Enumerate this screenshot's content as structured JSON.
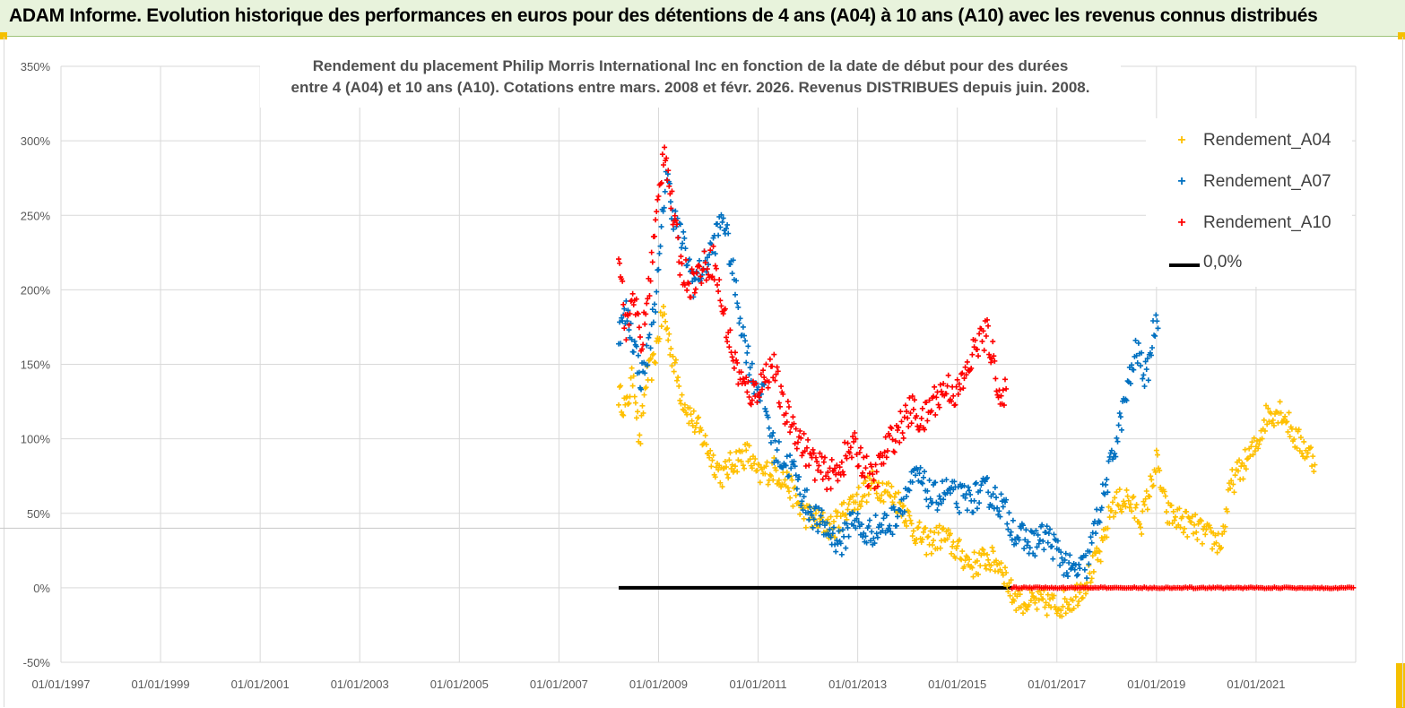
{
  "banner": {
    "title": "ADAM Informe. Evolution historique des performances en euros pour des détentions de 4 ans (A04) à 10 ans (A10) avec les revenus connus distribués"
  },
  "colors": {
    "a04": "#ffc000",
    "a07": "#0070c0",
    "a10": "#ff0000",
    "zero": "#000000",
    "grid": "#d9d9d9",
    "banner_bg": "#e8f3dc"
  },
  "chart_data": {
    "type": "scatter",
    "title_line1": "Rendement du placement Philip Morris International Inc en fonction de la date de début pour des durées",
    "title_line2": "entre 4 (A04) et 10 ans (A10).  Cotations entre mars. 2008 et févr. 2026. Revenus DISTRIBUES depuis juin. 2008.",
    "x_range": [
      1997.0,
      2023.0
    ],
    "ylim": [
      -50,
      350
    ],
    "x_tick_labels": [
      "01/01/1997",
      "01/01/1999",
      "01/01/2001",
      "01/01/2003",
      "01/01/2005",
      "01/01/2007",
      "01/01/2009",
      "01/01/2011",
      "01/01/2013",
      "01/01/2015",
      "01/01/2017",
      "01/01/2019",
      "01/01/2021"
    ],
    "x_tick_years": [
      1997,
      1999,
      2001,
      2003,
      2005,
      2007,
      2009,
      2011,
      2013,
      2015,
      2017,
      2019,
      2021
    ],
    "y_ticks": [
      -50,
      0,
      50,
      100,
      150,
      200,
      250,
      300,
      350
    ],
    "y_tick_labels": [
      "-50%",
      "0%",
      "50%",
      "100%",
      "150%",
      "200%",
      "250%",
      "300%",
      "350%"
    ],
    "legend": {
      "a04": "Rendement_A04",
      "a07": "Rendement_A07",
      "a10": "Rendement_A10",
      "zero": "0,0%"
    },
    "series": [
      {
        "name": "Rendement_A04",
        "key": "a04",
        "x": [
          2008.2,
          2008.35,
          2008.5,
          2008.62,
          2008.75,
          2008.9,
          2009.0,
          2009.1,
          2009.25,
          2009.45,
          2009.65,
          2009.9,
          2010.1,
          2010.3,
          2010.5,
          2010.8,
          2011.0,
          2011.3,
          2011.6,
          2011.9,
          2012.2,
          2012.5,
          2012.8,
          2013.0,
          2013.3,
          2013.6,
          2013.9,
          2014.1,
          2014.4,
          2014.7,
          2015.0,
          2015.3,
          2015.6,
          2015.9,
          2016.1,
          2016.4,
          2016.7,
          2017.0,
          2017.3,
          2017.6,
          2017.9,
          2018.1,
          2018.4,
          2018.7,
          2018.9,
          2019.0,
          2019.2,
          2019.5,
          2019.8,
          2020.0,
          2020.3,
          2020.5,
          2020.8,
          2021.0,
          2021.2,
          2021.5,
          2021.8,
          2022.2
        ],
        "y": [
          130,
          120,
          145,
          95,
          140,
          150,
          170,
          185,
          160,
          130,
          115,
          100,
          85,
          75,
          85,
          90,
          75,
          80,
          70,
          50,
          45,
          40,
          55,
          60,
          70,
          65,
          55,
          40,
          30,
          35,
          25,
          15,
          20,
          15,
          -5,
          -10,
          -10,
          -12,
          -8,
          5,
          25,
          55,
          60,
          45,
          70,
          85,
          50,
          45,
          40,
          35,
          30,
          70,
          85,
          95,
          115,
          120,
          100,
          85
        ],
        "jitter": 9
      },
      {
        "name": "Rendement_A07",
        "key": "a07",
        "x": [
          2008.2,
          2008.35,
          2008.5,
          2008.65,
          2008.8,
          2009.0,
          2009.15,
          2009.3,
          2009.5,
          2009.7,
          2009.9,
          2010.1,
          2010.3,
          2010.5,
          2010.7,
          2010.9,
          2011.1,
          2011.3,
          2011.5,
          2011.7,
          2011.9,
          2012.2,
          2012.5,
          2012.7,
          2012.9,
          2013.1,
          2013.4,
          2013.7,
          2014.0,
          2014.2,
          2014.5,
          2014.8,
          2015.0,
          2015.3,
          2015.6,
          2015.9,
          2016.2,
          2016.5,
          2016.8,
          2017.0,
          2017.3,
          2017.6,
          2017.8,
          2018.0,
          2018.2,
          2018.4,
          2018.6,
          2018.8,
          2018.95,
          2019.05
        ],
        "y": [
          170,
          185,
          165,
          140,
          160,
          210,
          280,
          250,
          230,
          205,
          215,
          230,
          250,
          210,
          170,
          140,
          130,
          95,
          85,
          80,
          60,
          45,
          35,
          30,
          50,
          35,
          40,
          45,
          65,
          75,
          60,
          65,
          60,
          60,
          65,
          55,
          35,
          30,
          35,
          25,
          10,
          15,
          45,
          70,
          100,
          130,
          160,
          140,
          175,
          185
        ],
        "jitter": 10
      },
      {
        "name": "Rendement_A10",
        "key": "a10",
        "x": [
          2008.2,
          2008.35,
          2008.5,
          2008.65,
          2008.8,
          2009.0,
          2009.12,
          2009.25,
          2009.45,
          2009.65,
          2009.9,
          2010.1,
          2010.3,
          2010.5,
          2010.7,
          2010.9,
          2011.1,
          2011.3,
          2011.5,
          2011.7,
          2011.9,
          2012.2,
          2012.5,
          2012.7,
          2012.9,
          2013.1,
          2013.3,
          2013.6,
          2013.9,
          2014.1,
          2014.3,
          2014.5,
          2014.8,
          2015.0,
          2015.2,
          2015.4,
          2015.6,
          2015.75,
          2015.9,
          2016.0
        ],
        "y": [
          230,
          170,
          200,
          160,
          200,
          260,
          300,
          260,
          215,
          205,
          215,
          220,
          185,
          155,
          135,
          130,
          140,
          150,
          120,
          110,
          95,
          80,
          75,
          85,
          95,
          85,
          70,
          95,
          110,
          120,
          110,
          125,
          135,
          130,
          145,
          165,
          170,
          150,
          120,
          135
        ],
        "jitter": 11
      },
      {
        "name": "Rendement_A10 (0%)",
        "key": "a10",
        "x": [
          2016.1,
          2022.99
        ],
        "y": [
          0,
          0
        ],
        "flat": true
      }
    ],
    "zero_line": {
      "name": "0,0%",
      "x": [
        2008.2,
        2016.1
      ],
      "y": [
        0,
        0
      ]
    }
  }
}
